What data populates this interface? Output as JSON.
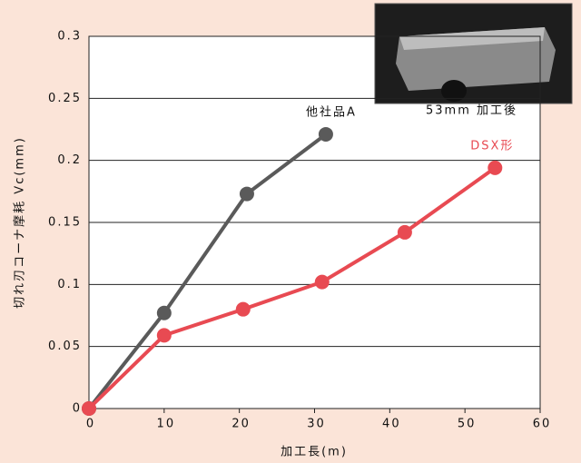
{
  "chart_data": {
    "type": "line",
    "x_label": "加工長(m)",
    "y_label": "切れ刃コーナ摩耗 Vc(mm)",
    "photo_caption": "53mm 加工後",
    "xlim": [
      0,
      60
    ],
    "xticks": [
      0,
      10,
      20,
      30,
      40,
      50,
      60
    ],
    "ylim": [
      0,
      0.3
    ],
    "yticks": [
      0,
      0.05,
      0.1,
      0.15,
      0.2,
      0.25,
      0.3
    ],
    "grid": true,
    "series": [
      {
        "name": "他社品A",
        "color": "#5a5a5a",
        "x": [
          0,
          10,
          21,
          31.5
        ],
        "values": [
          0,
          0.077,
          0.173,
          0.221
        ]
      },
      {
        "name": "DSX形",
        "color": "#e84a52",
        "x": [
          0,
          10,
          20.5,
          31,
          42,
          54
        ],
        "values": [
          0,
          0.059,
          0.08,
          0.102,
          0.142,
          0.194
        ]
      }
    ]
  }
}
